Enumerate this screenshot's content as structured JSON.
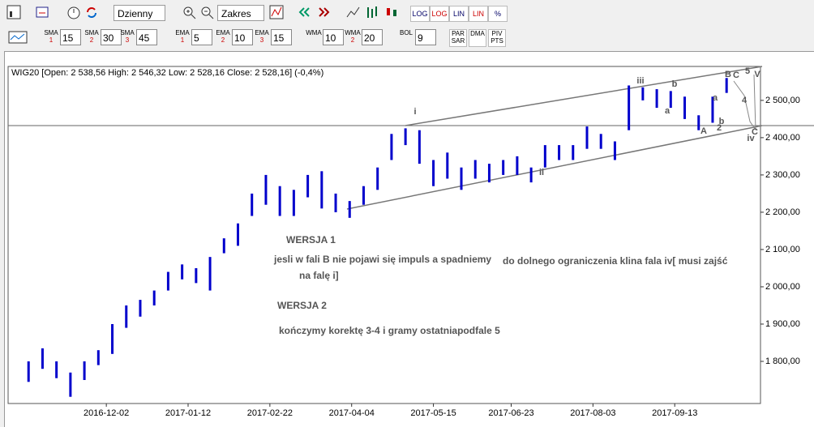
{
  "toolbar": {
    "interval": "Dzienny",
    "range": "Zakres",
    "scale_buttons": [
      "LOG",
      "LOG",
      "LIN",
      "LIN",
      "%"
    ],
    "indicators": [
      {
        "label": "SMA",
        "sub": "1",
        "value": 15
      },
      {
        "label": "SMA",
        "sub": "2",
        "value": 30
      },
      {
        "label": "SMA",
        "sub": "3",
        "value": 45
      },
      {
        "label": "EMA",
        "sub": "1",
        "value": 5
      },
      {
        "label": "EMA",
        "sub": "2",
        "value": 10
      },
      {
        "label": "EMA",
        "sub": "3",
        "value": 15
      },
      {
        "label": "WMA",
        "sub": "",
        "value": 10
      },
      {
        "label": "WMA",
        "sub": "2",
        "value": 20
      },
      {
        "label": "BOL",
        "sub": "",
        "value": 9
      }
    ],
    "buttons": [
      "PAR SAR",
      "DMA",
      "PIV PTS"
    ]
  },
  "chart_data": {
    "type": "hilo",
    "title": "WIG20 [Open: 2 538,56 High: 2 546,32 Low: 2 528,16 Close: 2 528,16] (-0,4%)",
    "color": "#0000cc",
    "x": [
      "2016-10-24",
      "2016-10-31",
      "2016-11-07",
      "2016-11-14",
      "2016-11-21",
      "2016-11-28",
      "2016-12-05",
      "2016-12-12",
      "2016-12-19",
      "2016-12-26",
      "2017-01-02",
      "2017-01-09",
      "2017-01-16",
      "2017-01-23",
      "2017-01-30",
      "2017-02-06",
      "2017-02-13",
      "2017-02-20",
      "2017-02-27",
      "2017-03-06",
      "2017-03-13",
      "2017-03-20",
      "2017-03-27",
      "2017-04-03",
      "2017-04-10",
      "2017-04-17",
      "2017-04-24",
      "2017-05-01",
      "2017-05-08",
      "2017-05-15",
      "2017-05-22",
      "2017-05-29",
      "2017-06-05",
      "2017-06-12",
      "2017-06-19",
      "2017-06-26",
      "2017-07-03",
      "2017-07-10",
      "2017-07-17",
      "2017-07-24",
      "2017-07-31",
      "2017-08-07",
      "2017-08-14",
      "2017-08-21",
      "2017-08-28",
      "2017-09-04",
      "2017-09-11",
      "2017-09-18",
      "2017-09-25",
      "2017-10-02",
      "2017-10-09"
    ],
    "high": [
      1800,
      1835,
      1800,
      1770,
      1800,
      1830,
      1900,
      1950,
      1965,
      1990,
      2040,
      2060,
      2050,
      2080,
      2130,
      2170,
      2250,
      2300,
      2270,
      2260,
      2300,
      2310,
      2250,
      2230,
      2270,
      2320,
      2410,
      2425,
      2420,
      2340,
      2360,
      2320,
      2340,
      2330,
      2340,
      2350,
      2320,
      2380,
      2380,
      2380,
      2430,
      2410,
      2390,
      2540,
      2535,
      2530,
      2525,
      2510,
      2460,
      2510,
      2560
    ],
    "low": [
      1745,
      1780,
      1755,
      1705,
      1750,
      1790,
      1820,
      1890,
      1920,
      1950,
      1990,
      2020,
      2010,
      1990,
      2090,
      2110,
      2190,
      2220,
      2190,
      2190,
      2240,
      2210,
      2200,
      2185,
      2220,
      2260,
      2340,
      2380,
      2330,
      2270,
      2290,
      2260,
      2290,
      2280,
      2300,
      2300,
      2280,
      2320,
      2340,
      2340,
      2370,
      2370,
      2340,
      2420,
      2500,
      2480,
      2480,
      2450,
      2420,
      2440,
      2520
    ],
    "xlim": [
      "2016-10-17",
      "2017-10-26"
    ],
    "xticks": [
      "2016-12-02",
      "2017-01-12",
      "2017-02-22",
      "2017-04-04",
      "2017-05-15",
      "2017-06-23",
      "2017-08-03",
      "2017-09-13"
    ],
    "ylim": [
      1687,
      2591
    ],
    "yticks": [
      {
        "value": 1800,
        "label": "1 800,00"
      },
      {
        "value": 1900,
        "label": "1 900,00"
      },
      {
        "value": 2000,
        "label": "2 000,00"
      },
      {
        "value": 2100,
        "label": "2 100,00"
      },
      {
        "value": 2200,
        "label": "2 200,00"
      },
      {
        "value": 2300,
        "label": "2 300,00"
      },
      {
        "value": 2400,
        "label": "2 400,00"
      },
      {
        "value": 2500,
        "label": "2 500,00"
      }
    ],
    "grid": false,
    "wave_labels": [
      "i",
      "ii",
      "iii",
      "b",
      "a",
      "a",
      "A",
      "b",
      "2",
      "B",
      "C",
      "5",
      "V",
      "4",
      "C",
      "iv"
    ],
    "notes": [
      "WERSJA 1",
      "jesli w fali  B nie pojawi się impuls a spadniemy",
      "na falę  i]",
      "do dolnego  ograniczenia klina fala iv[ musi zajść",
      "WERSJA 2",
      "kończymy korektę 3-4 i gramy ostatniapodfale 5"
    ]
  }
}
